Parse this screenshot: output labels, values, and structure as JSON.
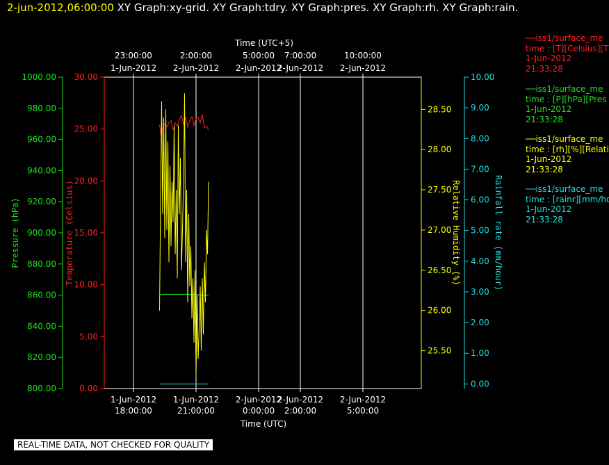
{
  "header": {
    "timestamp": "2-jun-2012,06:00:00",
    "titles": "XY Graph:xy-grid.  XY Graph:tdry.  XY Graph:pres.  XY Graph:rh.  XY Graph:rain."
  },
  "banner": "REAL-TIME DATA, NOT CHECKED FOR QUALITY",
  "colors": {
    "background": "#000000",
    "grid": "#ffffff",
    "temperature": "#ff2020",
    "pressure": "#20e020",
    "humidity": "#ffff00",
    "rain": "#20e0e0"
  },
  "legend": [
    {
      "series": "temperature",
      "line1": "iss1/surface_me",
      "line2": "time : [T][Celsius][T",
      "line3": "1-Jun-2012",
      "line4": "21:33:28"
    },
    {
      "series": "pressure",
      "line1": "iss1/surface_me",
      "line2": "time : [P][hPa][Pres",
      "line3": "1-Jun-2012",
      "line4": "21:33:28"
    },
    {
      "series": "humidity",
      "line1": "iss1/surface_me",
      "line2": "time : [rh][%][Relati",
      "line3": "1-Jun-2012",
      "line4": "21:33:28"
    },
    {
      "series": "rain",
      "line1": "iss1/surface_me",
      "line2": "time : [rainr][mm/ho",
      "line3": "1-Jun-2012",
      "line4": "21:33:28"
    }
  ],
  "chart_data": {
    "type": "line",
    "grid": true,
    "xlabel": "Time (UTC)",
    "xlabel_top": "Time (UTC+5)",
    "xlim_utc_hours": [
      16.6,
      31.8
    ],
    "x_ticks_bottom": [
      {
        "hour": 18,
        "date": "1-Jun-2012",
        "time": "18:00:00"
      },
      {
        "hour": 21,
        "date": "1-Jun-2012",
        "time": "21:00:00"
      },
      {
        "hour": 24,
        "date": "2-Jun-2012",
        "time": "0:00:00"
      },
      {
        "hour": 26,
        "date": "2-Jun-2012",
        "time": "2:00:00"
      },
      {
        "hour": 29,
        "date": "2-Jun-2012",
        "time": "5:00:00"
      }
    ],
    "x_ticks_top": [
      {
        "hour": 18,
        "time": "23:00:00",
        "date": "1-Jun-2012"
      },
      {
        "hour": 21,
        "time": "2:00:00",
        "date": "2-Jun-2012"
      },
      {
        "hour": 24,
        "time": "5:00:00",
        "date": "2-Jun-2012"
      },
      {
        "hour": 26,
        "time": "7:00:00",
        "date": "2-Jun-2012"
      },
      {
        "hour": 29,
        "time": "10:00:00",
        "date": "2-Jun-2012"
      }
    ],
    "axes": {
      "pressure": {
        "label": "Pressure (hPa)",
        "ylim": [
          800,
          1000
        ],
        "ticks": [
          "800.00",
          "820.00",
          "840.00",
          "860.00",
          "880.00",
          "900.00",
          "920.00",
          "940.00",
          "960.00",
          "980.00",
          "1000.00"
        ]
      },
      "temperature": {
        "label": "Temperature (Celsius)",
        "ylim": [
          0,
          30
        ],
        "ticks": [
          "0.00",
          "5.00",
          "10.00",
          "15.00",
          "20.00",
          "25.00",
          "30.00"
        ]
      },
      "humidity": {
        "label": "Relative Humidity (%)",
        "ylim": [
          25.03,
          28.9
        ],
        "ticks": [
          "25.50",
          "26.00",
          "26.50",
          "27.00",
          "27.50",
          "28.00",
          "28.50"
        ]
      },
      "rain": {
        "label": "Rainfall rate (mm/hour)",
        "ylim": [
          -0.15,
          10.0
        ],
        "ticks": [
          "0.00",
          "1.00",
          "2.00",
          "3.00",
          "4.00",
          "5.00",
          "6.00",
          "7.00",
          "8.00",
          "9.00",
          "10.00"
        ]
      }
    },
    "series": [
      {
        "name": "iss1/surface_me",
        "axis": "temperature",
        "x": [
          19.25,
          19.33,
          19.4,
          19.5,
          19.6,
          19.7,
          19.8,
          19.9,
          20.0,
          20.1,
          20.2,
          20.3,
          20.4,
          20.5,
          20.6,
          20.7,
          20.8,
          20.9,
          21.0,
          21.1,
          21.2,
          21.3,
          21.4,
          21.5,
          21.6
        ],
        "y": [
          25.4,
          24.3,
          25.0,
          25.5,
          25.2,
          25.6,
          25.8,
          24.9,
          25.6,
          25.3,
          25.9,
          26.3,
          25.5,
          26.1,
          25.2,
          25.8,
          26.2,
          25.3,
          26.0,
          26.1,
          25.6,
          26.4,
          25.1,
          25.3,
          24.9
        ]
      },
      {
        "name": "iss1/surface_me",
        "axis": "pressure",
        "x": [
          19.25,
          19.5,
          20.0,
          20.5,
          21.0,
          21.3,
          21.6
        ],
        "y": [
          860.3,
          860.6,
          860.5,
          860.6,
          860.4,
          860.0,
          859.8
        ]
      },
      {
        "name": "iss1/surface_me",
        "axis": "humidity",
        "x": [
          19.25,
          19.3,
          19.35,
          19.4,
          19.45,
          19.5,
          19.55,
          19.6,
          19.65,
          19.7,
          19.75,
          19.8,
          19.85,
          19.9,
          19.95,
          20.0,
          20.05,
          20.1,
          20.15,
          20.2,
          20.25,
          20.3,
          20.35,
          20.4,
          20.45,
          20.5,
          20.55,
          20.6,
          20.65,
          20.7,
          20.75,
          20.8,
          20.85,
          20.9,
          20.95,
          21.0,
          21.05,
          21.1,
          21.15,
          21.2,
          21.25,
          21.3,
          21.35,
          21.4,
          21.45,
          21.5,
          21.55,
          21.6
        ],
        "y": [
          26.0,
          27.4,
          28.6,
          27.2,
          28.4,
          26.9,
          28.5,
          27.0,
          28.1,
          26.6,
          27.8,
          26.8,
          27.6,
          27.1,
          28.3,
          26.7,
          27.5,
          26.4,
          28.3,
          27.2,
          27.9,
          26.5,
          27.0,
          27.6,
          28.7,
          26.6,
          27.5,
          26.1,
          27.2,
          26.3,
          26.8,
          25.9,
          26.4,
          25.6,
          26.5,
          25.2,
          26.2,
          25.4,
          25.8,
          26.3,
          25.5,
          26.4,
          25.7,
          26.6,
          26.1,
          27.0,
          26.7,
          27.6
        ]
      },
      {
        "name": "iss1/surface_me",
        "axis": "rain",
        "x": [
          19.25,
          21.6
        ],
        "y": [
          0.0,
          0.0
        ]
      }
    ]
  }
}
